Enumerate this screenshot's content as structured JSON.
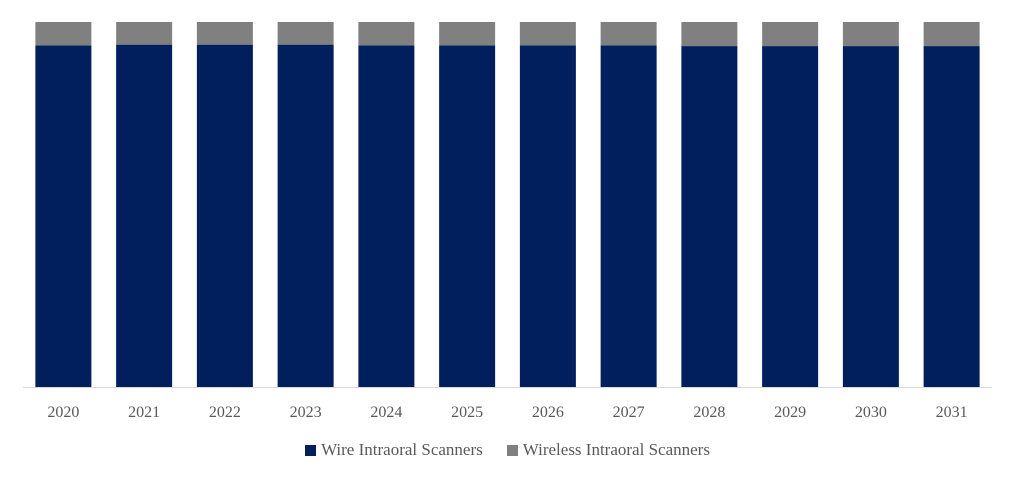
{
  "chart_data": {
    "type": "bar",
    "stacked": true,
    "percent": true,
    "categories": [
      "2020",
      "2021",
      "2022",
      "2023",
      "2024",
      "2025",
      "2026",
      "2027",
      "2028",
      "2029",
      "2030",
      "2031"
    ],
    "series": [
      {
        "name": "Wire Intraoral Scanners",
        "color": "#001f5c",
        "values": [
          93.6,
          93.8,
          93.8,
          93.8,
          93.6,
          93.6,
          93.6,
          93.6,
          93.4,
          93.4,
          93.4,
          93.4
        ]
      },
      {
        "name": "Wireless Intraoral Scanners",
        "color": "#808080",
        "values": [
          6.4,
          6.2,
          6.2,
          6.2,
          6.4,
          6.4,
          6.4,
          6.4,
          6.6,
          6.6,
          6.6,
          6.6
        ]
      }
    ],
    "ylim": [
      0,
      100
    ],
    "grid": false,
    "legend_position": "bottom"
  }
}
